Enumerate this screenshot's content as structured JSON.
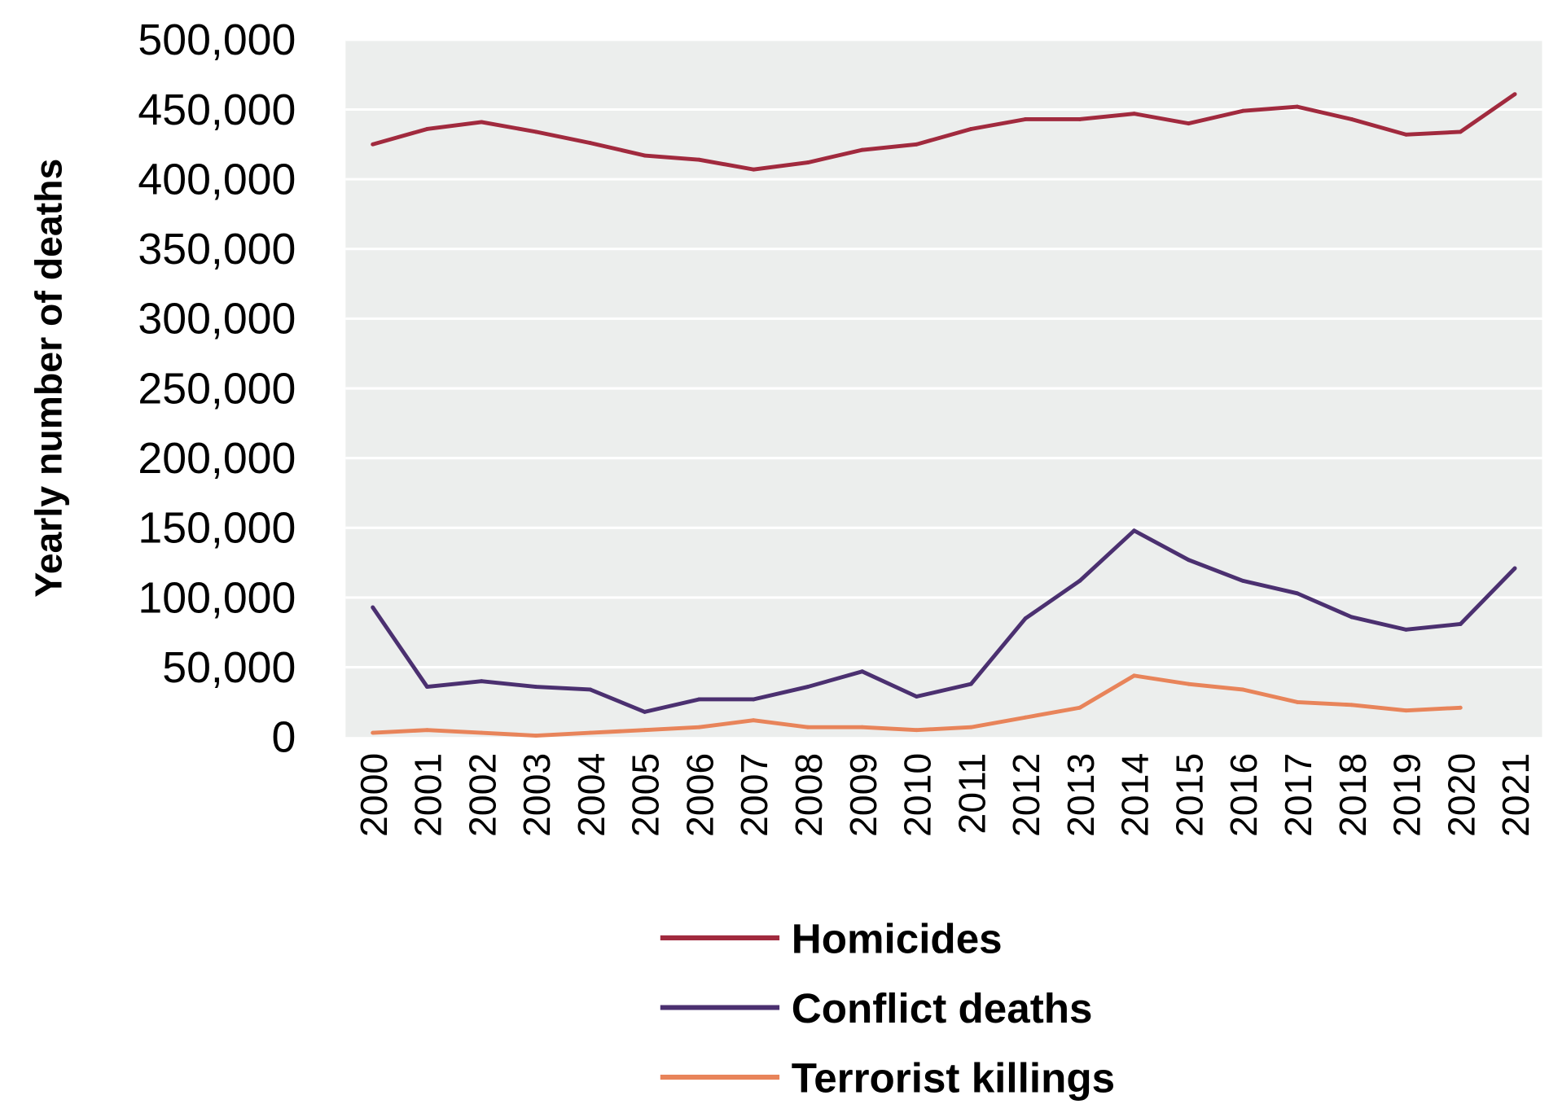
{
  "chart_data": {
    "type": "line",
    "title": "",
    "xlabel": "",
    "ylabel": "Yearly number of deaths",
    "ylim": [
      0,
      500000
    ],
    "yticks": [
      "0",
      "50,000",
      "100,000",
      "150,000",
      "200,000",
      "250,000",
      "300,000",
      "350,000",
      "400,000",
      "450,000",
      "500,000"
    ],
    "ytick_values": [
      0,
      50000,
      100000,
      150000,
      200000,
      250000,
      300000,
      350000,
      400000,
      450000,
      500000
    ],
    "grid": true,
    "background": "#eceeed",
    "legend_position": "bottom",
    "categories": [
      "2000",
      "2001",
      "2002",
      "2003",
      "2004",
      "2005",
      "2006",
      "2007",
      "2008",
      "2009",
      "2010",
      "2011",
      "2012",
      "2013",
      "2014",
      "2015",
      "2016",
      "2017",
      "2018",
      "2019",
      "2020",
      "2021"
    ],
    "series": [
      {
        "name": "Homicides",
        "color": "#a12a3e",
        "values": [
          425000,
          436000,
          441000,
          434000,
          426000,
          417000,
          414000,
          407000,
          412000,
          421000,
          425000,
          436000,
          443000,
          443000,
          447000,
          440000,
          449000,
          452000,
          443000,
          432000,
          434000,
          461000
        ]
      },
      {
        "name": "Conflict deaths",
        "color": "#4b3070",
        "values": [
          93000,
          36000,
          40000,
          36000,
          34000,
          18000,
          27000,
          27000,
          36000,
          47000,
          29000,
          38000,
          85000,
          112000,
          148000,
          127000,
          112000,
          103000,
          86000,
          77000,
          81000,
          121000
        ]
      },
      {
        "name": "Terrorist killings",
        "color": "#e8845a",
        "values": [
          3000,
          5000,
          3000,
          1000,
          3000,
          5000,
          7000,
          12000,
          7000,
          7000,
          5000,
          7000,
          14000,
          21000,
          44000,
          38000,
          34000,
          25000,
          23000,
          19000,
          21000,
          null
        ]
      }
    ]
  }
}
